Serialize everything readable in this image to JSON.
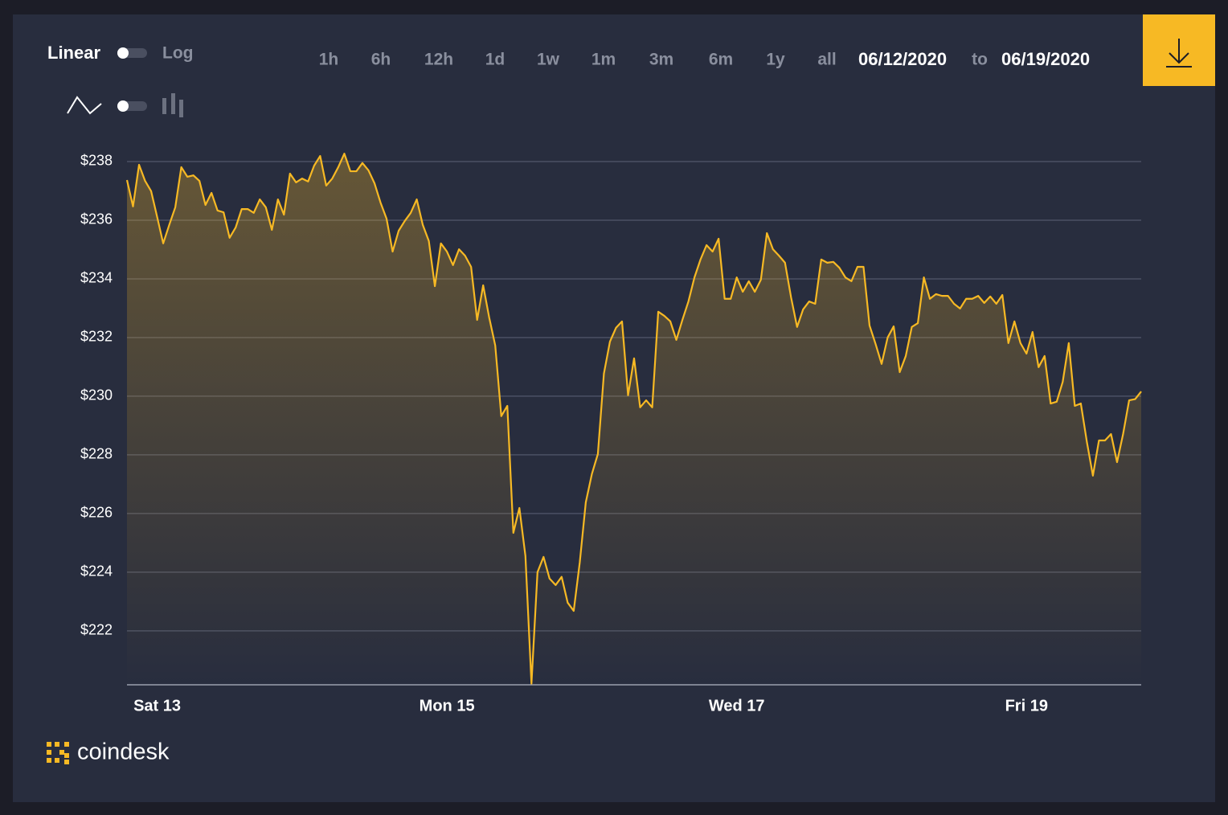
{
  "controls": {
    "scale_linear": "Linear",
    "scale_log": "Log",
    "ranges": [
      "1h",
      "6h",
      "12h",
      "1d",
      "1w",
      "1m",
      "3m",
      "6m",
      "1y",
      "all"
    ],
    "active_range": "1w",
    "date_from": "06/12/2020",
    "date_sep": "to",
    "date_to": "06/19/2020"
  },
  "brand": "coindesk",
  "chart_data": {
    "type": "area",
    "color": "#f7b924",
    "grid": true,
    "values": [
      237.37,
      236.47,
      237.89,
      237.34,
      236.99,
      236.11,
      235.21,
      235.84,
      236.44,
      237.81,
      237.48,
      237.53,
      237.34,
      236.52,
      236.93,
      236.33,
      236.27,
      235.4,
      235.75,
      236.38,
      236.38,
      236.25,
      236.71,
      236.44,
      235.67,
      236.71,
      236.19,
      237.59,
      237.29,
      237.42,
      237.32,
      237.86,
      238.19,
      237.18,
      237.42,
      237.81,
      238.27,
      237.67,
      237.67,
      237.95,
      237.7,
      237.26,
      236.6,
      236.05,
      234.93,
      235.64,
      235.97,
      236.25,
      236.71,
      235.84,
      235.29,
      233.75,
      235.21,
      234.93,
      234.47,
      235.01,
      234.79,
      234.41,
      232.6,
      233.78,
      232.68,
      231.73,
      229.32,
      229.67,
      225.34,
      226.19,
      224.55,
      220.2,
      224.0,
      224.52,
      223.78,
      223.56,
      223.84,
      222.96,
      222.68,
      224.33,
      226.38,
      227.34,
      228.03,
      230.77,
      231.86,
      232.33,
      232.55,
      230.03,
      231.29,
      229.62,
      229.86,
      229.62,
      232.88,
      232.74,
      232.55,
      231.92,
      232.6,
      233.23,
      234.05,
      234.66,
      235.15,
      234.93,
      235.37,
      233.32,
      233.32,
      234.05,
      233.56,
      233.92,
      233.56,
      233.97,
      235.56,
      235.01,
      234.79,
      234.55,
      233.37,
      232.36,
      232.96,
      233.23,
      233.15,
      234.66,
      234.55,
      234.58,
      234.38,
      234.05,
      233.92,
      234.41,
      234.41,
      232.41,
      231.78,
      231.1,
      232.0,
      232.38,
      230.82,
      231.37,
      232.36,
      232.49,
      234.05,
      233.32,
      233.48,
      233.42,
      233.42,
      233.15,
      232.99,
      233.32,
      233.32,
      233.42,
      233.18,
      233.4,
      233.15,
      233.45,
      231.81,
      232.55,
      231.81,
      231.45,
      232.19,
      230.99,
      231.37,
      229.75,
      229.81,
      230.49,
      231.81,
      229.67,
      229.75,
      228.44,
      227.29,
      228.49,
      228.49,
      228.71,
      227.75,
      228.71,
      229.86,
      229.9,
      230.16
    ],
    "xlim": [
      0,
      168
    ],
    "xticks": [
      {
        "value": 5,
        "label": "Sat 13"
      },
      {
        "value": 53,
        "label": "Mon 15"
      },
      {
        "value": 101,
        "label": "Wed 17"
      },
      {
        "value": 149,
        "label": "Fri 19"
      }
    ],
    "ylim": [
      220.16,
      238.4
    ],
    "yticks": [
      {
        "value": 222,
        "label": "$222"
      },
      {
        "value": 224,
        "label": "$224"
      },
      {
        "value": 226,
        "label": "$226"
      },
      {
        "value": 228,
        "label": "$228"
      },
      {
        "value": 230,
        "label": "$230"
      },
      {
        "value": 232,
        "label": "$232"
      },
      {
        "value": 234,
        "label": "$234"
      },
      {
        "value": 236,
        "label": "$236"
      },
      {
        "value": 238,
        "label": "$238"
      }
    ]
  }
}
